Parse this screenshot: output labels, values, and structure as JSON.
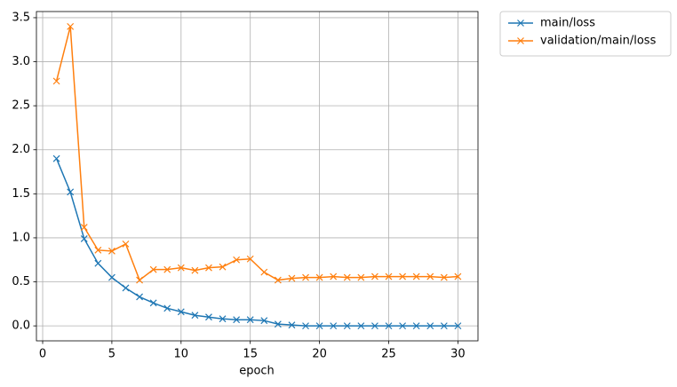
{
  "chart_data": {
    "type": "line",
    "xlabel": "epoch",
    "x": [
      1,
      2,
      3,
      4,
      5,
      6,
      7,
      8,
      9,
      10,
      11,
      12,
      13,
      14,
      15,
      16,
      17,
      18,
      19,
      20,
      21,
      22,
      23,
      24,
      25,
      26,
      27,
      28,
      29,
      30
    ],
    "series": [
      {
        "name": "main/loss",
        "color": "#1f77b4",
        "values": [
          1.9,
          1.52,
          0.99,
          0.71,
          0.55,
          0.43,
          0.33,
          0.26,
          0.2,
          0.16,
          0.12,
          0.1,
          0.08,
          0.07,
          0.07,
          0.06,
          0.02,
          0.01,
          0.0,
          0.0,
          0.0,
          0.0,
          0.0,
          0.0,
          0.0,
          0.0,
          0.0,
          0.0,
          0.0,
          0.0
        ]
      },
      {
        "name": "validation/main/loss",
        "color": "#ff7f0e",
        "values": [
          2.78,
          3.4,
          1.12,
          0.86,
          0.85,
          0.93,
          0.52,
          0.64,
          0.64,
          0.66,
          0.63,
          0.66,
          0.67,
          0.75,
          0.76,
          0.61,
          0.52,
          0.54,
          0.55,
          0.55,
          0.56,
          0.55,
          0.55,
          0.56,
          0.56,
          0.56,
          0.56,
          0.56,
          0.55,
          0.56
        ]
      }
    ],
    "xlim": [
      -0.45,
      31.45
    ],
    "xticks": [
      0,
      5,
      10,
      15,
      20,
      25,
      30
    ],
    "ylim": [
      -0.17,
      3.57
    ],
    "yticks": [
      {
        "value": 0,
        "label": "0.0"
      },
      0.5,
      {
        "value": 1,
        "label": "1.0"
      },
      1.5,
      {
        "value": 2,
        "label": "2.0"
      },
      2.5,
      {
        "value": 3,
        "label": "3.0"
      },
      3.5
    ],
    "grid": true,
    "legend": "outside-upper-right",
    "marker": "x"
  }
}
